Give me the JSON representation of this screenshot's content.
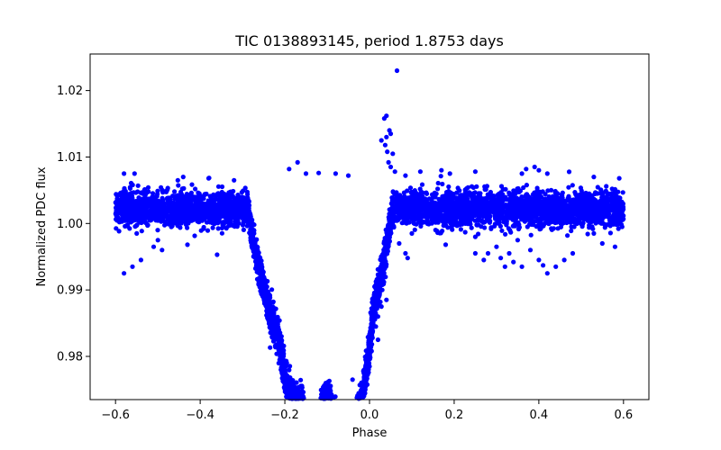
{
  "chart_data": {
    "type": "scatter",
    "title": "TIC 0138893145, period 1.8753 days",
    "xlabel": "Phase",
    "ylabel": "Normalized PDC flux",
    "xlim": [
      -0.66,
      0.66
    ],
    "ylim": [
      0.9735,
      1.0255
    ],
    "x_ticks": [
      -0.6,
      -0.4,
      -0.2,
      0.0,
      0.2,
      0.4,
      0.6
    ],
    "x_tick_labels": [
      "−0.6",
      "−0.4",
      "−0.2",
      "0.0",
      "0.2",
      "0.4",
      "0.6"
    ],
    "y_ticks": [
      0.98,
      0.99,
      1.0,
      1.01,
      1.02
    ],
    "y_tick_labels": [
      "0.98",
      "0.99",
      "1.00",
      "1.01",
      "1.02"
    ],
    "grid": false,
    "legend": "none",
    "marker_color": "#0000ff",
    "series": [
      {
        "baseline_flux": 1.0022,
        "baseline_scatter": 0.0013,
        "phase_range": [
          -0.6,
          0.6
        ],
        "eclipses": [
          {
            "center": -0.198,
            "depth": 0.0205,
            "half_width": 0.09
          },
          {
            "center": -0.135,
            "depth": 0.0165,
            "half_width": 0.08
          },
          {
            "center": -0.075,
            "depth": 0.0195,
            "half_width": 0.085
          },
          {
            "center": -0.02,
            "depth": 0.0195,
            "half_width": 0.075
          }
        ],
        "outliers": [
          {
            "x": 0.065,
            "y": 1.023
          },
          {
            "x": 0.04,
            "y": 1.0162
          },
          {
            "x": 0.035,
            "y": 1.0158
          },
          {
            "x": 0.047,
            "y": 1.014
          },
          {
            "x": 0.05,
            "y": 1.0135
          },
          {
            "x": 0.04,
            "y": 1.013
          },
          {
            "x": 0.028,
            "y": 1.0125
          },
          {
            "x": 0.037,
            "y": 1.0118
          },
          {
            "x": 0.042,
            "y": 1.0108
          },
          {
            "x": 0.055,
            "y": 1.0105
          },
          {
            "x": 0.045,
            "y": 1.0092
          },
          {
            "x": 0.05,
            "y": 1.0085
          },
          {
            "x": 0.06,
            "y": 1.0078
          },
          {
            "x": 0.085,
            "y": 1.0072
          },
          {
            "x": -0.17,
            "y": 1.0092
          },
          {
            "x": -0.19,
            "y": 1.0082
          },
          {
            "x": -0.15,
            "y": 1.0075
          },
          {
            "x": -0.12,
            "y": 1.0076
          },
          {
            "x": -0.08,
            "y": 1.0075
          },
          {
            "x": -0.05,
            "y": 1.0072
          },
          {
            "x": -0.58,
            "y": 0.9925
          },
          {
            "x": -0.56,
            "y": 0.9935
          },
          {
            "x": -0.54,
            "y": 0.9945
          },
          {
            "x": -0.51,
            "y": 0.9965
          },
          {
            "x": -0.5,
            "y": 0.9975
          },
          {
            "x": -0.49,
            "y": 0.996
          },
          {
            "x": -0.43,
            "y": 0.9968
          },
          {
            "x": -0.36,
            "y": 0.9953
          },
          {
            "x": -0.55,
            "y": 0.9985
          },
          {
            "x": 0.07,
            "y": 0.997
          },
          {
            "x": 0.085,
            "y": 0.9955
          },
          {
            "x": 0.09,
            "y": 0.9948
          },
          {
            "x": 0.18,
            "y": 0.9968
          },
          {
            "x": 0.25,
            "y": 0.998
          },
          {
            "x": 0.25,
            "y": 0.9955
          },
          {
            "x": 0.27,
            "y": 0.9945
          },
          {
            "x": 0.28,
            "y": 0.9955
          },
          {
            "x": 0.3,
            "y": 0.9965
          },
          {
            "x": 0.32,
            "y": 0.9935
          },
          {
            "x": 0.31,
            "y": 0.9948
          },
          {
            "x": 0.34,
            "y": 0.9942
          },
          {
            "x": 0.33,
            "y": 0.9955
          },
          {
            "x": 0.36,
            "y": 0.9935
          },
          {
            "x": 0.35,
            "y": 0.9975
          },
          {
            "x": 0.38,
            "y": 0.996
          },
          {
            "x": 0.41,
            "y": 0.9937
          },
          {
            "x": 0.4,
            "y": 0.9945
          },
          {
            "x": 0.42,
            "y": 0.9925
          },
          {
            "x": 0.44,
            "y": 0.9935
          },
          {
            "x": 0.46,
            "y": 0.9945
          },
          {
            "x": 0.48,
            "y": 0.9955
          },
          {
            "x": 0.53,
            "y": 0.9985
          },
          {
            "x": 0.55,
            "y": 0.997
          },
          {
            "x": 0.58,
            "y": 0.9965
          },
          {
            "x": 0.1,
            "y": 0.9985
          },
          {
            "x": 0.03,
            "y": 0.99
          },
          {
            "x": 0.028,
            "y": 0.9875
          },
          {
            "x": 0.02,
            "y": 0.986
          },
          {
            "x": 0.04,
            "y": 0.9885
          },
          {
            "x": 0.015,
            "y": 0.9845
          },
          {
            "x": 0.005,
            "y": 0.9808
          },
          {
            "x": -0.005,
            "y": 0.9795
          },
          {
            "x": 0.0,
            "y": 0.9785
          },
          {
            "x": -0.01,
            "y": 0.978
          },
          {
            "x": -0.04,
            "y": 0.9765
          },
          {
            "x": 0.02,
            "y": 0.9825
          },
          {
            "x": 0.25,
            "y": 1.0078
          },
          {
            "x": 0.17,
            "y": 1.008
          },
          {
            "x": 0.19,
            "y": 1.0075
          },
          {
            "x": 0.36,
            "y": 1.0075
          },
          {
            "x": 0.39,
            "y": 1.0085
          },
          {
            "x": 0.4,
            "y": 1.008
          },
          {
            "x": 0.42,
            "y": 1.0075
          },
          {
            "x": 0.37,
            "y": 1.0082
          },
          {
            "x": 0.53,
            "y": 1.007
          },
          {
            "x": -0.58,
            "y": 1.0075
          },
          {
            "x": -0.555,
            "y": 1.0075
          },
          {
            "x": -0.44,
            "y": 1.007
          },
          {
            "x": -0.38,
            "y": 1.0068
          },
          {
            "x": -0.32,
            "y": 1.0065
          },
          {
            "x": 0.12,
            "y": 1.0078
          },
          {
            "x": 0.59,
            "y": 1.0068
          }
        ]
      }
    ]
  }
}
